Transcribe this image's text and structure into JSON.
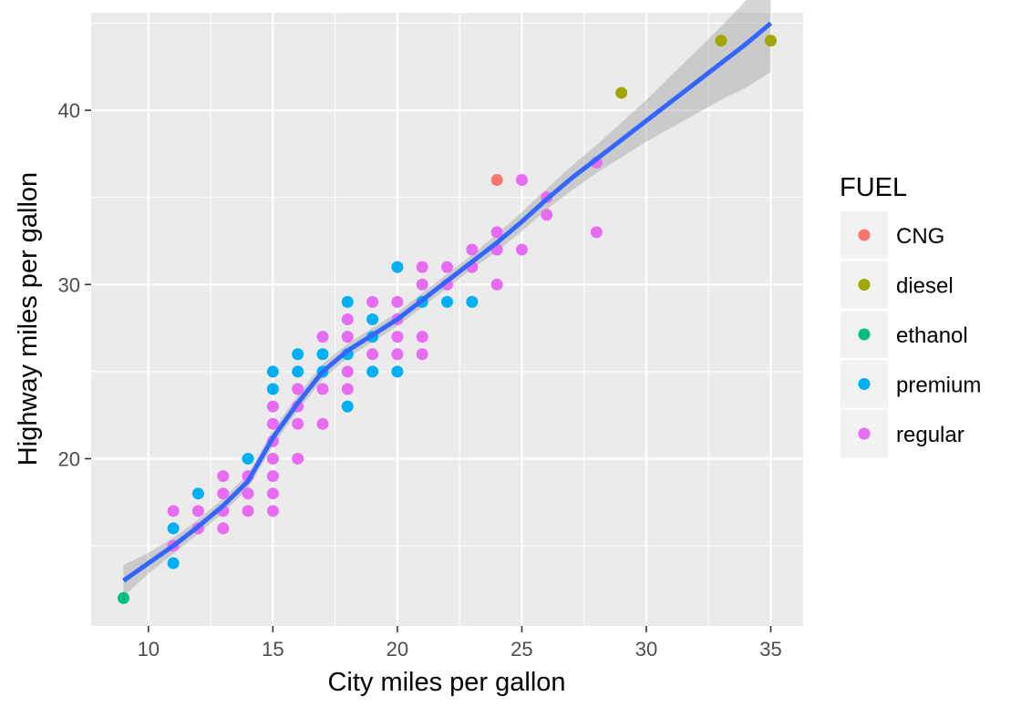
{
  "chart_data": {
    "type": "scatter",
    "xlabel": "City miles per gallon",
    "ylabel": "Highway miles per gallon",
    "xlim": [
      7.7,
      36.3
    ],
    "ylim": [
      10.4,
      45.6
    ],
    "x_ticks": [
      10,
      15,
      20,
      25,
      30,
      35
    ],
    "y_ticks": [
      20,
      30,
      40
    ],
    "x_tick_labels": [
      "10",
      "15",
      "20",
      "25",
      "30",
      "35"
    ],
    "y_tick_labels": [
      "20",
      "30",
      "40"
    ],
    "grid": true,
    "legend": {
      "title": "FUEL",
      "placement": "right",
      "entries": [
        "CNG",
        "diesel",
        "ethanol",
        "premium",
        "regular"
      ]
    },
    "colors": {
      "CNG": "#F8766D",
      "diesel": "#A3A500",
      "ethanol": "#00BF7D",
      "premium": "#00B0F6",
      "regular": "#E76BF3",
      "smooth": "#3366FF",
      "panel": "#EBEBEB"
    },
    "series": [
      {
        "name": "CNG",
        "points": [
          [
            24,
            36
          ]
        ]
      },
      {
        "name": "diesel",
        "points": [
          [
            29,
            41
          ],
          [
            33,
            44
          ],
          [
            35,
            44
          ]
        ]
      },
      {
        "name": "ethanol",
        "points": [
          [
            9,
            12
          ]
        ]
      },
      {
        "name": "premium",
        "points": [
          [
            11,
            16
          ],
          [
            11,
            14
          ],
          [
            12,
            18
          ],
          [
            14,
            20
          ],
          [
            15,
            25
          ],
          [
            15,
            24
          ],
          [
            16,
            26
          ],
          [
            16,
            25
          ],
          [
            17,
            26
          ],
          [
            17,
            25
          ],
          [
            18,
            29
          ],
          [
            18,
            26
          ],
          [
            18,
            23
          ],
          [
            19,
            28
          ],
          [
            19,
            27
          ],
          [
            19,
            25
          ],
          [
            20,
            31
          ],
          [
            20,
            25
          ],
          [
            21,
            29
          ],
          [
            22,
            29
          ],
          [
            23,
            29
          ]
        ]
      },
      {
        "name": "regular",
        "points": [
          [
            11,
            17
          ],
          [
            11,
            15
          ],
          [
            12,
            17
          ],
          [
            12,
            16
          ],
          [
            13,
            19
          ],
          [
            13,
            18
          ],
          [
            13,
            17
          ],
          [
            13,
            16
          ],
          [
            14,
            19
          ],
          [
            14,
            18
          ],
          [
            14,
            17
          ],
          [
            15,
            23
          ],
          [
            15,
            22
          ],
          [
            15,
            21
          ],
          [
            15,
            20
          ],
          [
            15,
            19
          ],
          [
            15,
            18
          ],
          [
            15,
            17
          ],
          [
            16,
            24
          ],
          [
            16,
            23
          ],
          [
            16,
            22
          ],
          [
            16,
            20
          ],
          [
            17,
            27
          ],
          [
            17,
            24
          ],
          [
            17,
            22
          ],
          [
            18,
            28
          ],
          [
            18,
            27
          ],
          [
            18,
            25
          ],
          [
            18,
            24
          ],
          [
            19,
            29
          ],
          [
            19,
            26
          ],
          [
            20,
            29
          ],
          [
            20,
            28
          ],
          [
            20,
            27
          ],
          [
            20,
            26
          ],
          [
            21,
            31
          ],
          [
            21,
            30
          ],
          [
            21,
            27
          ],
          [
            21,
            26
          ],
          [
            22,
            31
          ],
          [
            22,
            30
          ],
          [
            23,
            32
          ],
          [
            23,
            31
          ],
          [
            24,
            33
          ],
          [
            24,
            32
          ],
          [
            24,
            30
          ],
          [
            25,
            36
          ],
          [
            25,
            32
          ],
          [
            26,
            35
          ],
          [
            26,
            34
          ],
          [
            28,
            37
          ],
          [
            28,
            33
          ]
        ]
      }
    ],
    "smooth": {
      "x": [
        9,
        10,
        11,
        12,
        13,
        14,
        15,
        16,
        17,
        18,
        19,
        20,
        21,
        22,
        23,
        24,
        25,
        26,
        27,
        28,
        29,
        30,
        31,
        32,
        33,
        34,
        35
      ],
      "y": [
        13,
        14,
        15,
        16.1,
        17.3,
        18.7,
        21.2,
        23.2,
        25,
        26.2,
        27.1,
        28,
        29.1,
        30.2,
        31.3,
        32.4,
        33.6,
        34.9,
        36.1,
        37.2,
        38.3,
        39.4,
        40.5,
        41.6,
        42.7,
        43.8,
        45
      ],
      "band_halfwidth": [
        0.9,
        0.6,
        0.45,
        0.4,
        0.4,
        0.4,
        0.45,
        0.45,
        0.45,
        0.4,
        0.4,
        0.4,
        0.4,
        0.4,
        0.4,
        0.5,
        0.55,
        0.6,
        0.7,
        0.8,
        1.0,
        1.2,
        1.5,
        1.8,
        2.1,
        2.5,
        2.8
      ]
    }
  }
}
